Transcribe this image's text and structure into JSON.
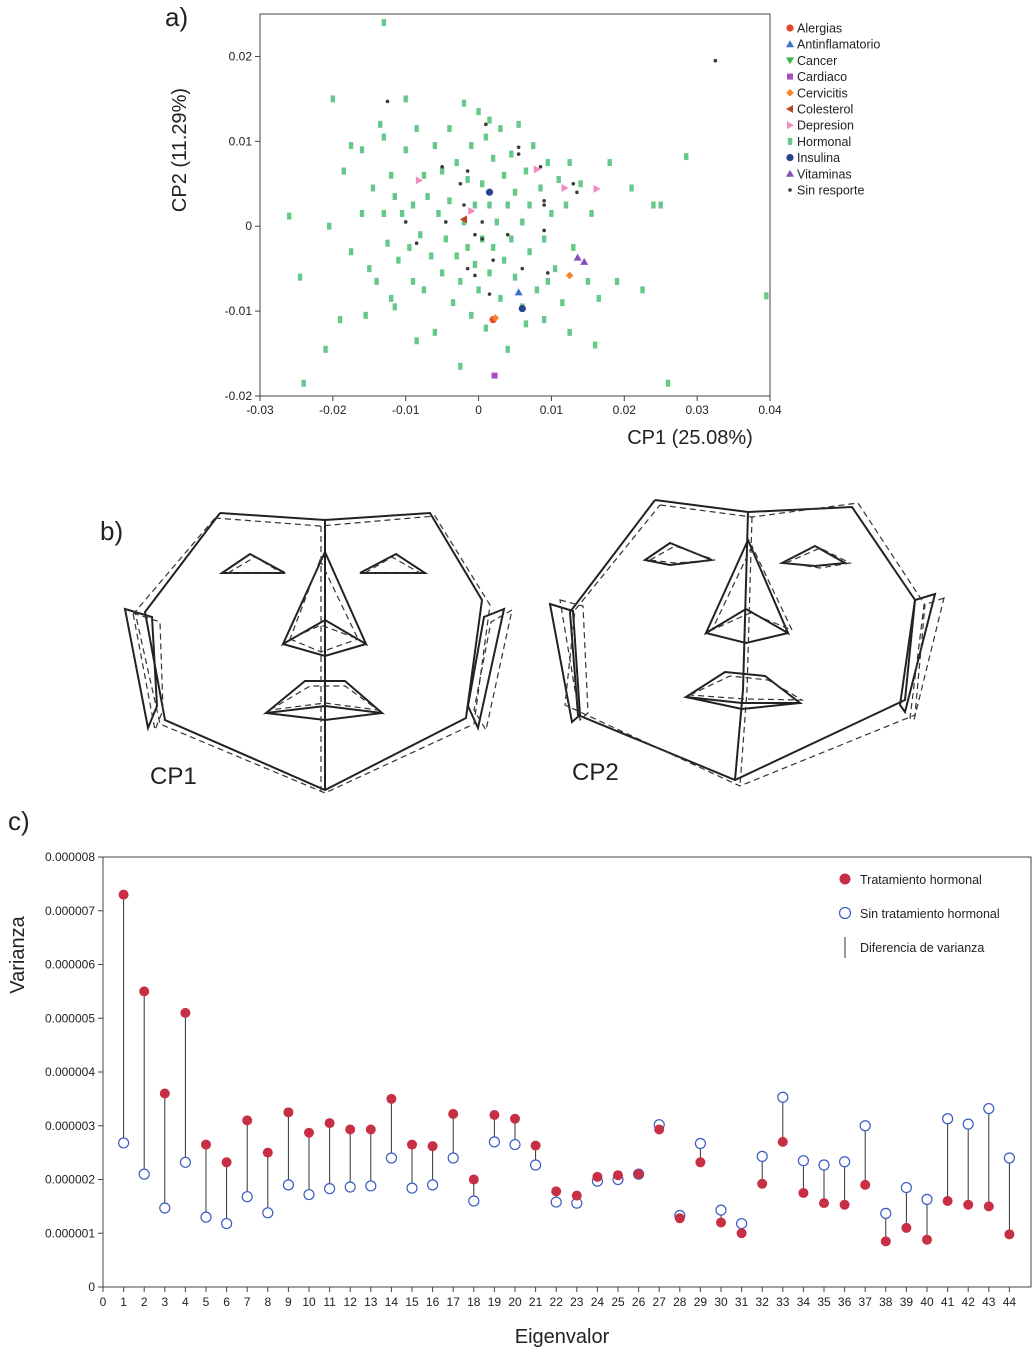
{
  "panels": {
    "a": "a)",
    "b": "b)",
    "c": "c)"
  },
  "colors": {
    "Alergias": "#e8432b",
    "Antinflamatorio": "#3b74c8",
    "Cancer": "#3cb54a",
    "Cardiaco": "#a84fbf",
    "Cervicitis": "#f5842a",
    "Colesterol": "#b5481f",
    "Depresion": "#f28bbf",
    "Hormonal": "#66c98a",
    "Insulina": "#27458f",
    "Vitaminas": "#8a4fb8",
    "Sin resporte": "#3a3a3a",
    "tratamiento": "#c72f45",
    "sin_tratamiento": "#3b5bbf"
  },
  "scatter": {
    "xlabel": "CP1 (25.08%)",
    "ylabel": "CP2 (11.29%)",
    "xlim": [
      -0.03,
      0.04
    ],
    "ylim": [
      -0.02,
      0.025
    ],
    "xticks": [
      "-0.03",
      "-0.02",
      "-0.01",
      "0",
      "0.01",
      "0.02",
      "0.03",
      "0.04"
    ],
    "yticks": [
      "-0.02",
      "-0.01",
      "0",
      "0.01",
      "0.02"
    ],
    "legend": [
      {
        "name": "Alergias",
        "marker": "circle"
      },
      {
        "name": "Antinflamatorio",
        "marker": "triangle-up"
      },
      {
        "name": "Cancer",
        "marker": "triangle-down"
      },
      {
        "name": "Cardiaco",
        "marker": "square"
      },
      {
        "name": "Cervicitis",
        "marker": "diamond"
      },
      {
        "name": "Colesterol",
        "marker": "triangle-left"
      },
      {
        "name": "Depresion",
        "marker": "triangle-right"
      },
      {
        "name": "Hormonal",
        "marker": "rect"
      },
      {
        "name": "Insulina",
        "marker": "circle"
      },
      {
        "name": "Vitaminas",
        "marker": "triangle-up"
      },
      {
        "name": "Sin resporte",
        "marker": "dot"
      }
    ]
  },
  "faces": {
    "cp1_label": "CP1",
    "cp2_label": "CP2"
  },
  "chart_data": [
    {
      "type": "scatter",
      "xlabel": "CP1 (25.08%)",
      "ylabel": "CP2 (11.29%)",
      "xlim": [
        -0.03,
        0.04
      ],
      "ylim": [
        -0.02,
        0.025
      ],
      "legend_position": "right",
      "series": [
        {
          "name": "Alergias",
          "points": [
            [
              0.002,
              -0.011
            ]
          ]
        },
        {
          "name": "Antinflamatorio",
          "points": [
            [
              0.0055,
              -0.0078
            ]
          ]
        },
        {
          "name": "Cancer",
          "points": []
        },
        {
          "name": "Cardiaco",
          "points": [
            [
              0.0022,
              -0.0176
            ]
          ]
        },
        {
          "name": "Cervicitis",
          "points": [
            [
              0.0125,
              -0.0058
            ],
            [
              0.0023,
              -0.0108
            ]
          ]
        },
        {
          "name": "Colesterol",
          "points": [
            [
              -0.002,
              0.0008
            ]
          ]
        },
        {
          "name": "Depresion",
          "points": [
            [
              -0.0082,
              0.0054
            ],
            [
              0.008,
              0.0067
            ],
            [
              0.0162,
              0.0044
            ],
            [
              -0.001,
              0.0018
            ],
            [
              0.0118,
              0.0045
            ]
          ]
        },
        {
          "name": "Hormonal",
          "points": [
            [
              -0.013,
              0.024
            ],
            [
              -0.02,
              0.015
            ],
            [
              -0.026,
              0.0012
            ],
            [
              -0.024,
              -0.0185
            ],
            [
              -0.0245,
              -0.006
            ],
            [
              -0.021,
              -0.0145
            ],
            [
              -0.0205,
              0.0
            ],
            [
              -0.019,
              -0.011
            ],
            [
              -0.0175,
              -0.003
            ],
            [
              -0.016,
              0.009
            ],
            [
              -0.016,
              0.0015
            ],
            [
              -0.015,
              -0.005
            ],
            [
              -0.0145,
              0.0045
            ],
            [
              -0.014,
              -0.0065
            ],
            [
              -0.0135,
              0.012
            ],
            [
              -0.013,
              0.0015
            ],
            [
              -0.0125,
              -0.002
            ],
            [
              -0.012,
              0.006
            ],
            [
              -0.012,
              -0.0085
            ],
            [
              -0.0115,
              0.0035
            ],
            [
              -0.011,
              -0.004
            ],
            [
              -0.0105,
              0.0015
            ],
            [
              -0.01,
              0.015
            ],
            [
              -0.01,
              0.009
            ],
            [
              -0.0095,
              -0.0025
            ],
            [
              -0.009,
              0.0025
            ],
            [
              -0.009,
              -0.0065
            ],
            [
              -0.0085,
              0.0115
            ],
            [
              -0.008,
              -0.001
            ],
            [
              -0.0075,
              0.006
            ],
            [
              -0.0075,
              -0.0075
            ],
            [
              -0.007,
              0.0035
            ],
            [
              -0.0065,
              -0.0035
            ],
            [
              -0.006,
              0.0095
            ],
            [
              -0.006,
              -0.0125
            ],
            [
              -0.0055,
              0.0015
            ],
            [
              -0.005,
              0.0065
            ],
            [
              -0.005,
              -0.0055
            ],
            [
              -0.0045,
              -0.0015
            ],
            [
              -0.004,
              0.0115
            ],
            [
              -0.004,
              0.003
            ],
            [
              -0.0035,
              -0.009
            ],
            [
              -0.003,
              -0.0035
            ],
            [
              -0.003,
              0.0075
            ],
            [
              -0.0025,
              -0.0065
            ],
            [
              -0.002,
              0.0145
            ],
            [
              -0.002,
              0.0005
            ],
            [
              -0.0015,
              -0.0025
            ],
            [
              -0.0015,
              0.0055
            ],
            [
              -0.001,
              -0.0105
            ],
            [
              -0.001,
              0.0095
            ],
            [
              -0.0005,
              -0.0045
            ],
            [
              -0.0005,
              0.0025
            ],
            [
              0.0,
              0.0135
            ],
            [
              0.0,
              -0.0075
            ],
            [
              0.0005,
              0.005
            ],
            [
              0.0005,
              -0.0015
            ],
            [
              0.001,
              0.0105
            ],
            [
              0.001,
              -0.012
            ],
            [
              0.0015,
              0.0025
            ],
            [
              0.0015,
              -0.0055
            ],
            [
              0.002,
              0.008
            ],
            [
              0.002,
              -0.0025
            ],
            [
              0.0025,
              0.0005
            ],
            [
              0.003,
              0.0115
            ],
            [
              0.003,
              -0.0085
            ],
            [
              0.0035,
              0.006
            ],
            [
              0.0035,
              -0.004
            ],
            [
              0.004,
              0.0025
            ],
            [
              0.004,
              -0.0145
            ],
            [
              0.0045,
              -0.0015
            ],
            [
              0.0045,
              0.0085
            ],
            [
              0.005,
              0.004
            ],
            [
              0.005,
              -0.006
            ],
            [
              0.0055,
              0.012
            ],
            [
              0.006,
              0.0005
            ],
            [
              0.006,
              -0.0095
            ],
            [
              0.0065,
              0.0065
            ],
            [
              0.007,
              -0.003
            ],
            [
              0.007,
              0.0025
            ],
            [
              0.0075,
              0.0095
            ],
            [
              0.008,
              -0.0075
            ],
            [
              0.0085,
              0.0045
            ],
            [
              0.009,
              -0.0015
            ],
            [
              0.009,
              -0.011
            ],
            [
              0.0095,
              0.0075
            ],
            [
              0.01,
              0.0015
            ],
            [
              0.0105,
              -0.005
            ],
            [
              0.011,
              0.0055
            ],
            [
              0.0115,
              -0.009
            ],
            [
              0.012,
              0.0025
            ],
            [
              0.0125,
              0.0075
            ],
            [
              0.013,
              -0.0025
            ],
            [
              0.014,
              0.005
            ],
            [
              0.015,
              -0.0065
            ],
            [
              0.0155,
              0.0015
            ],
            [
              0.016,
              -0.014
            ],
            [
              0.018,
              0.0075
            ],
            [
              0.019,
              -0.0065
            ],
            [
              0.0225,
              -0.0075
            ],
            [
              0.025,
              0.0025
            ],
            [
              0.026,
              -0.0185
            ],
            [
              0.0285,
              0.0082
            ],
            [
              0.0395,
              -0.0082
            ],
            [
              -0.0185,
              0.0065
            ],
            [
              -0.0175,
              0.0095
            ],
            [
              -0.0155,
              -0.0105
            ],
            [
              -0.013,
              0.0105
            ],
            [
              -0.0115,
              -0.0095
            ],
            [
              -0.0085,
              -0.0135
            ],
            [
              -0.0025,
              -0.0165
            ],
            [
              0.0015,
              0.0125
            ],
            [
              0.0065,
              -0.0115
            ],
            [
              0.0095,
              -0.0065
            ],
            [
              0.0125,
              -0.0125
            ],
            [
              0.0165,
              -0.0085
            ],
            [
              0.021,
              0.0045
            ],
            [
              0.024,
              0.0025
            ]
          ]
        },
        {
          "name": "Insulina",
          "points": [
            [
              0.0015,
              0.004
            ],
            [
              0.006,
              -0.0097
            ]
          ]
        },
        {
          "name": "Vitaminas",
          "points": [
            [
              0.0145,
              -0.0042
            ],
            [
              0.0136,
              -0.0037
            ]
          ]
        },
        {
          "name": "Sin resporte",
          "points": [
            [
              0.0325,
              0.0195
            ],
            [
              -0.0125,
              0.0147
            ],
            [
              0.001,
              0.012
            ],
            [
              0.0055,
              0.0093
            ],
            [
              -0.005,
              0.007
            ],
            [
              0.0055,
              0.0085
            ],
            [
              -0.0015,
              0.0065
            ],
            [
              0.0085,
              0.007
            ],
            [
              0.013,
              0.005
            ],
            [
              -0.0025,
              0.005
            ],
            [
              0.009,
              0.003
            ],
            [
              0.0135,
              0.004
            ],
            [
              -0.002,
              0.0025
            ],
            [
              0.009,
              0.0025
            ],
            [
              -0.01,
              0.0005
            ],
            [
              -0.0045,
              0.0005
            ],
            [
              0.0005,
              0.0005
            ],
            [
              -0.0005,
              -0.001
            ],
            [
              0.004,
              -0.001
            ],
            [
              0.009,
              -0.0005
            ],
            [
              0.0005,
              -0.0015
            ],
            [
              -0.0085,
              -0.002
            ],
            [
              0.002,
              -0.004
            ],
            [
              -0.0015,
              -0.005
            ],
            [
              0.006,
              -0.005
            ],
            [
              0.0095,
              -0.0055
            ],
            [
              0.0015,
              -0.008
            ],
            [
              -0.0005,
              -0.0058
            ]
          ]
        }
      ]
    },
    {
      "type": "scatter",
      "xlabel": "Eigenvalor",
      "ylabel": "Varianza",
      "xlim": [
        0,
        45
      ],
      "ylim": [
        0,
        8e-06
      ],
      "xticks": [
        "0",
        "1",
        "2",
        "3",
        "4",
        "5",
        "6",
        "7",
        "8",
        "9",
        "10",
        "11",
        "12",
        "13",
        "14",
        "15",
        "16",
        "17",
        "18",
        "19",
        "20",
        "21",
        "22",
        "23",
        "24",
        "25",
        "26",
        "27",
        "28",
        "29",
        "30",
        "31",
        "32",
        "33",
        "34",
        "35",
        "36",
        "37",
        "38",
        "39",
        "40",
        "41",
        "42",
        "43",
        "44"
      ],
      "yticks": [
        "0",
        "0.000001",
        "0.000002",
        "0.000003",
        "0.000004",
        "0.000005",
        "0.000006",
        "0.000007",
        "0.000008"
      ],
      "legend_position": "top-right",
      "legend": {
        "tratamiento": "Tratamiento hormonal",
        "sin_tratamiento": "Sin tratamiento hormonal",
        "diferencia": "Diferencia de varianza"
      },
      "eigen": [
        1,
        2,
        3,
        4,
        5,
        6,
        7,
        8,
        9,
        10,
        11,
        12,
        13,
        14,
        15,
        16,
        17,
        18,
        19,
        20,
        21,
        22,
        23,
        24,
        25,
        26,
        27,
        28,
        29,
        30,
        31,
        32,
        33,
        34,
        35,
        36,
        37,
        38,
        39,
        40,
        41,
        42,
        43,
        44
      ],
      "series": [
        {
          "name": "Tratamiento hormonal",
          "values": [
            7.3e-06,
            5.5e-06,
            3.6e-06,
            5.1e-06,
            2.65e-06,
            2.32e-06,
            3.1e-06,
            2.5e-06,
            3.25e-06,
            2.87e-06,
            3.05e-06,
            2.93e-06,
            2.93e-06,
            3.5e-06,
            2.65e-06,
            2.62e-06,
            3.22e-06,
            2e-06,
            3.2e-06,
            3.13e-06,
            2.63e-06,
            1.78e-06,
            1.7e-06,
            2.05e-06,
            2.08e-06,
            2.1e-06,
            2.93e-06,
            1.28e-06,
            2.32e-06,
            1.2e-06,
            1e-06,
            1.92e-06,
            2.7e-06,
            1.75e-06,
            1.56e-06,
            1.53e-06,
            1.9e-06,
            8.5e-07,
            1.1e-06,
            8.8e-07,
            1.6e-06,
            1.53e-06,
            1.5e-06,
            9.8e-07
          ]
        },
        {
          "name": "Sin tratamiento hormonal",
          "values": [
            2.68e-06,
            2.1e-06,
            1.47e-06,
            2.32e-06,
            1.3e-06,
            1.18e-06,
            1.68e-06,
            1.38e-06,
            1.9e-06,
            1.72e-06,
            1.83e-06,
            1.86e-06,
            1.88e-06,
            2.4e-06,
            1.84e-06,
            1.9e-06,
            2.4e-06,
            1.6e-06,
            2.7e-06,
            2.65e-06,
            2.27e-06,
            1.58e-06,
            1.56e-06,
            1.97e-06,
            2e-06,
            2.1e-06,
            3.02e-06,
            1.33e-06,
            2.67e-06,
            1.43e-06,
            1.18e-06,
            2.43e-06,
            3.53e-06,
            2.35e-06,
            2.27e-06,
            2.33e-06,
            3e-06,
            1.37e-06,
            1.85e-06,
            1.63e-06,
            3.13e-06,
            3.03e-06,
            3.32e-06,
            2.4e-06
          ]
        }
      ]
    }
  ]
}
